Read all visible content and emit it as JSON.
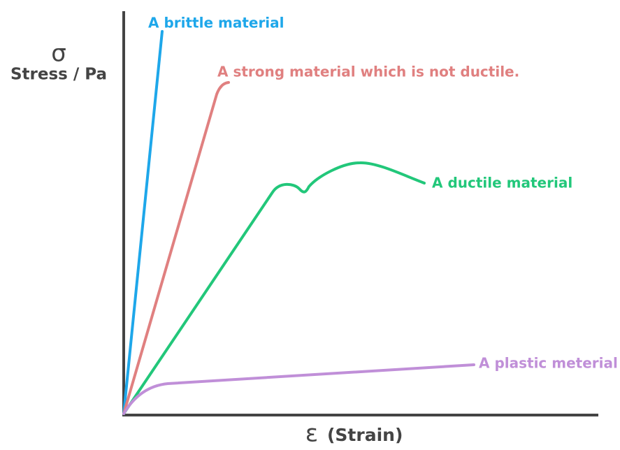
{
  "axes": {
    "y_symbol": "σ",
    "y_label": "Stress / Pa",
    "x_symbol": "ε",
    "x_label": "(Strain)"
  },
  "curves": [
    {
      "label": "A brittle material"
    },
    {
      "label": "A strong material which is not ductile."
    },
    {
      "label": "A ductile material"
    },
    {
      "label": "A plastic meterial"
    }
  ]
}
